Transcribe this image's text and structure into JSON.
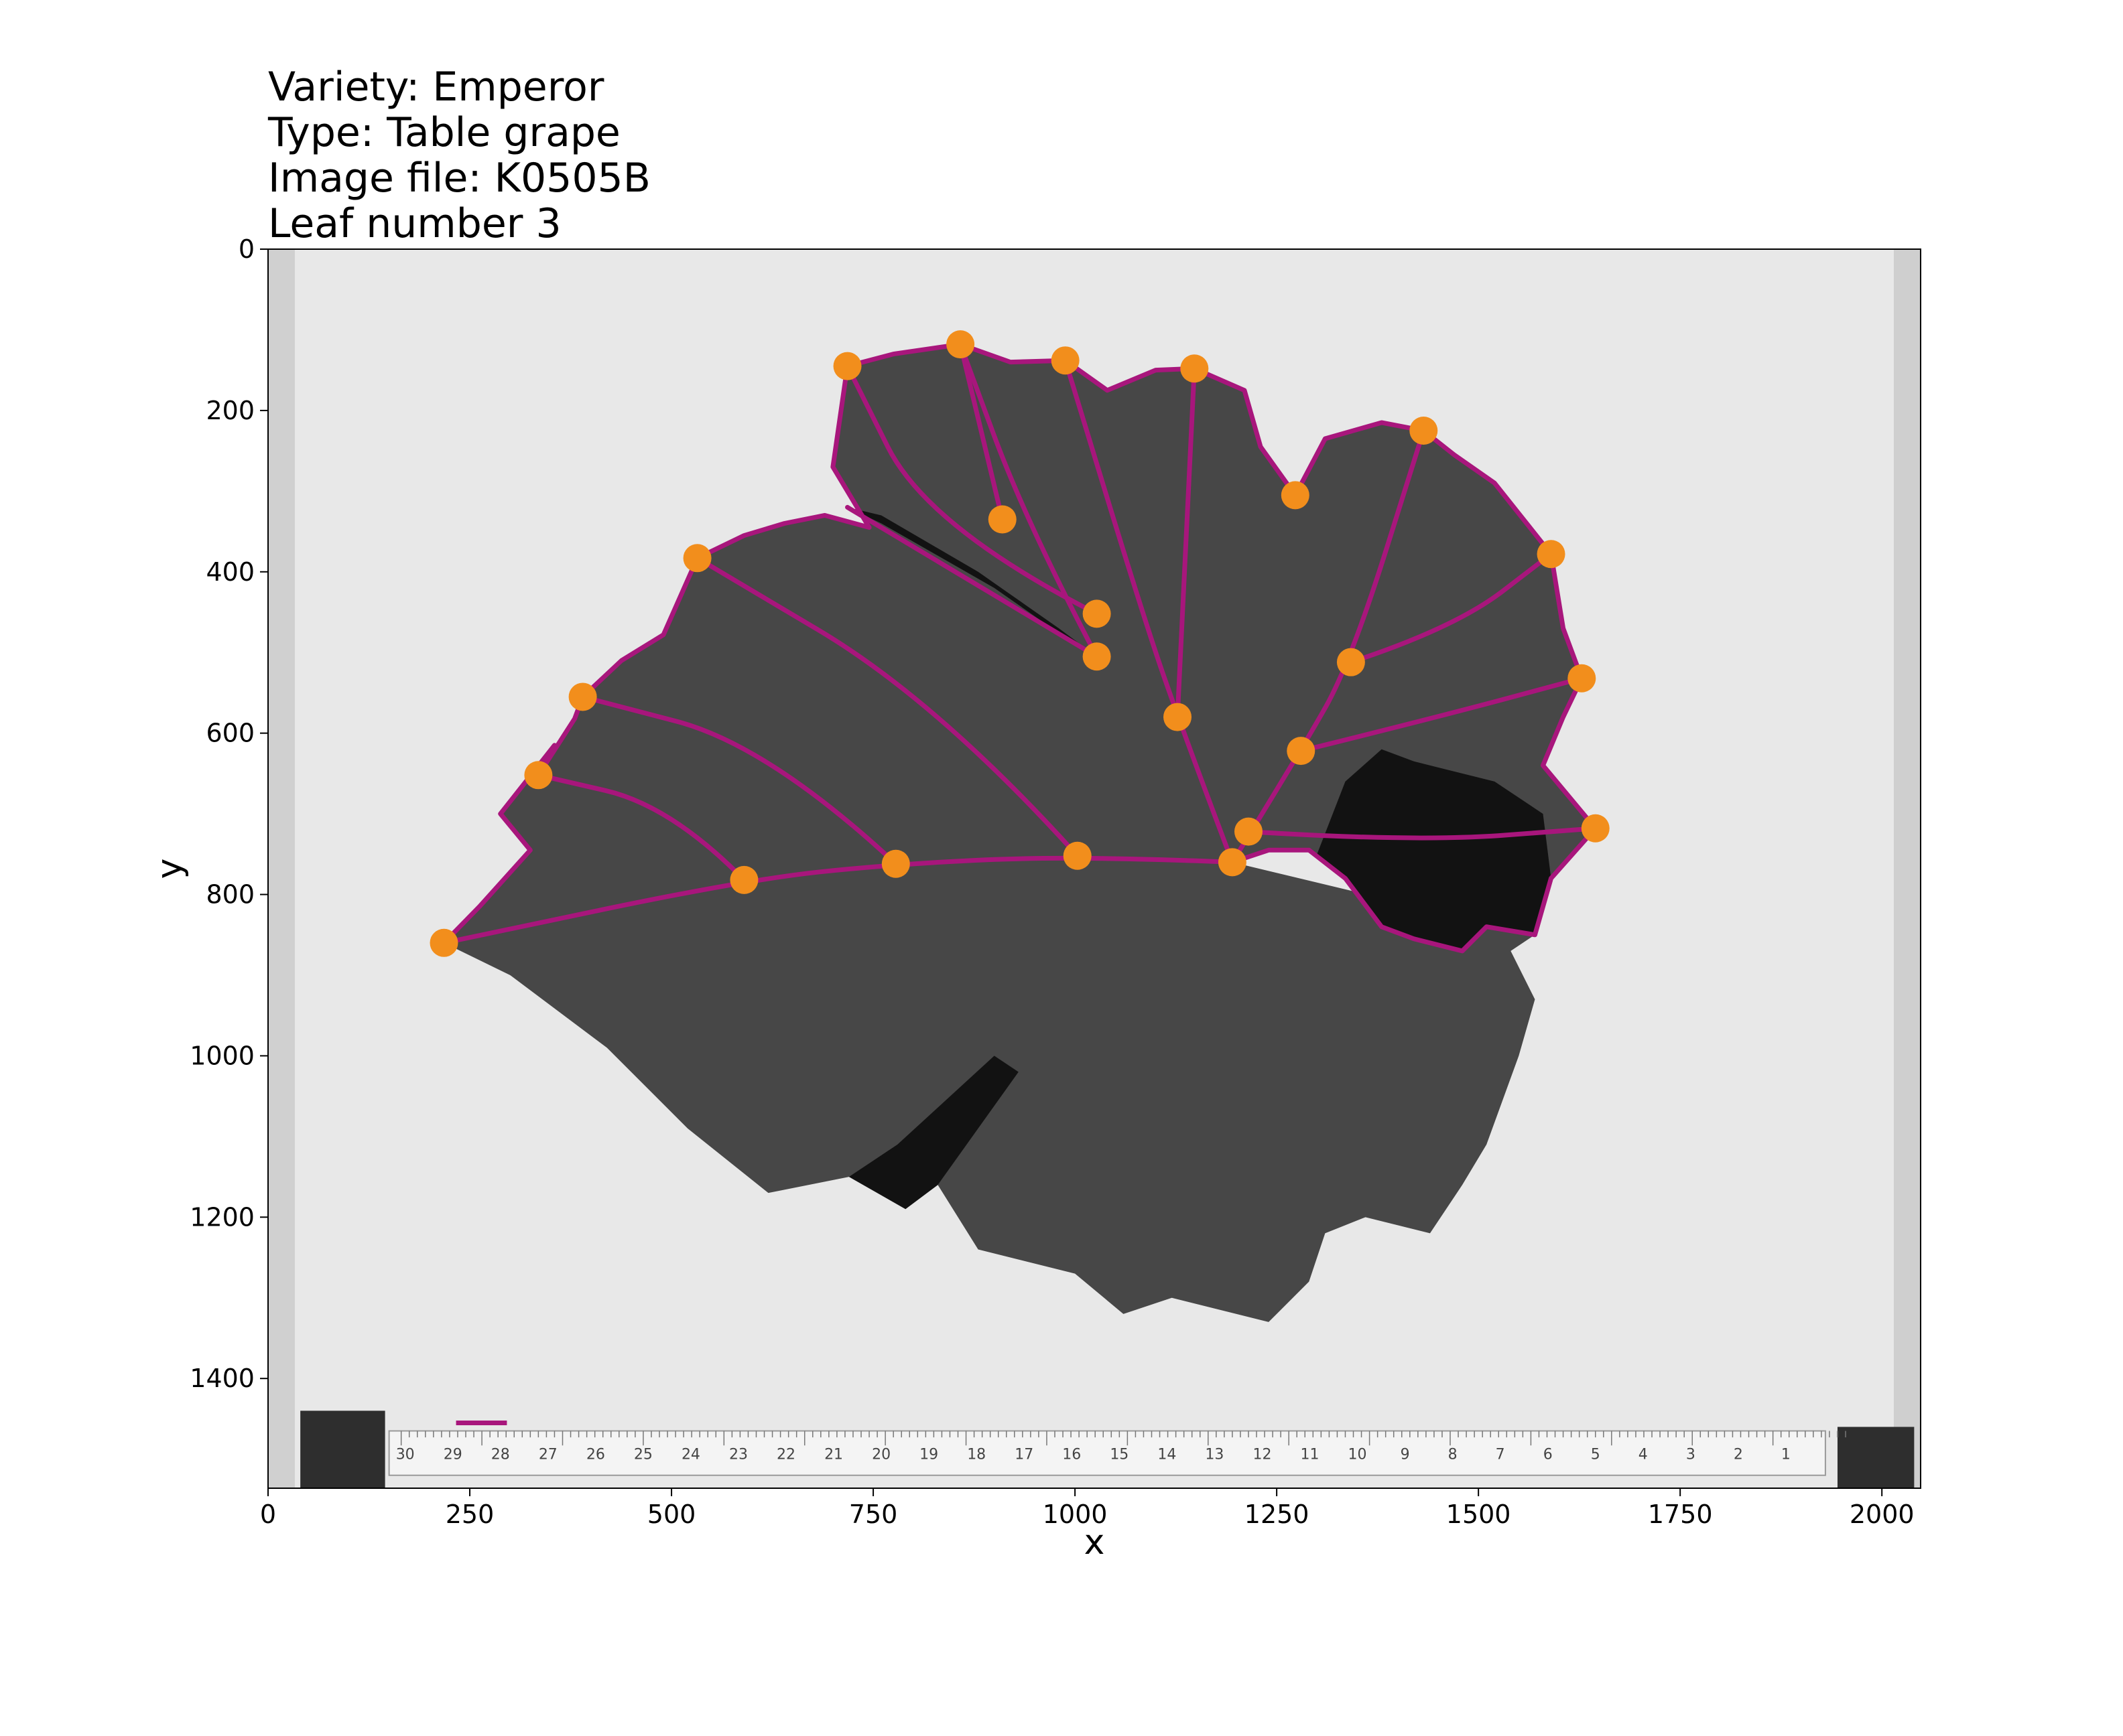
{
  "chart_data": {
    "type": "scatter",
    "title_lines": [
      "Variety: Emperor",
      "Type: Table grape",
      "Image file: K0505B",
      "Leaf number 3"
    ],
    "xlabel": "x",
    "ylabel": "y",
    "xlim": [
      0,
      2048
    ],
    "ylim": [
      1536,
      0
    ],
    "x_ticks": [
      0,
      250,
      500,
      750,
      1000,
      1250,
      1500,
      1750,
      2000
    ],
    "y_ticks": [
      0,
      200,
      400,
      600,
      800,
      1000,
      1200,
      1400
    ],
    "x_tick_labels": [
      "0",
      "250",
      "500",
      "750",
      "1000",
      "1250",
      "1500",
      "1750",
      "2000"
    ],
    "y_tick_labels": [
      "0",
      "200",
      "400",
      "600",
      "800",
      "1000",
      "1200",
      "1400"
    ],
    "colors": {
      "landmark": "#f28e1c",
      "outline": "#a8167c",
      "leaf": "#474747",
      "shadow": "#121212",
      "background": "#e8e8e8"
    },
    "landmarks": [
      {
        "x": 1195,
        "y": 760
      },
      {
        "x": 1003,
        "y": 752
      },
      {
        "x": 778,
        "y": 762
      },
      {
        "x": 590,
        "y": 782
      },
      {
        "x": 218,
        "y": 860
      },
      {
        "x": 1127,
        "y": 580
      },
      {
        "x": 1027,
        "y": 452
      },
      {
        "x": 1027,
        "y": 505
      },
      {
        "x": 910,
        "y": 335
      },
      {
        "x": 1280,
        "y": 622
      },
      {
        "x": 1342,
        "y": 512
      },
      {
        "x": 1215,
        "y": 722
      },
      {
        "x": 718,
        "y": 145
      },
      {
        "x": 858,
        "y": 118
      },
      {
        "x": 988,
        "y": 138
      },
      {
        "x": 1148,
        "y": 148
      },
      {
        "x": 1273,
        "y": 305
      },
      {
        "x": 1432,
        "y": 225
      },
      {
        "x": 1590,
        "y": 378
      },
      {
        "x": 1628,
        "y": 532
      },
      {
        "x": 1645,
        "y": 718
      },
      {
        "x": 532,
        "y": 383
      },
      {
        "x": 390,
        "y": 555
      },
      {
        "x": 335,
        "y": 652
      }
    ],
    "blade_outline": [
      [
        218,
        860
      ],
      [
        262,
        815
      ],
      [
        325,
        745
      ],
      [
        288,
        700
      ],
      [
        355,
        615
      ],
      [
        335,
        652
      ],
      [
        380,
        582
      ],
      [
        390,
        555
      ],
      [
        438,
        510
      ],
      [
        490,
        478
      ],
      [
        532,
        383
      ],
      [
        590,
        355
      ],
      [
        640,
        340
      ],
      [
        690,
        330
      ],
      [
        745,
        345
      ],
      [
        700,
        270
      ],
      [
        718,
        145
      ],
      [
        775,
        130
      ],
      [
        858,
        118
      ],
      [
        920,
        140
      ],
      [
        988,
        138
      ],
      [
        1040,
        175
      ],
      [
        1100,
        150
      ],
      [
        1148,
        148
      ],
      [
        1210,
        175
      ],
      [
        1230,
        245
      ],
      [
        1273,
        305
      ],
      [
        1310,
        235
      ],
      [
        1380,
        215
      ],
      [
        1432,
        225
      ],
      [
        1470,
        255
      ],
      [
        1520,
        290
      ],
      [
        1590,
        378
      ],
      [
        1605,
        470
      ],
      [
        1628,
        532
      ],
      [
        1605,
        580
      ],
      [
        1580,
        640
      ],
      [
        1645,
        718
      ],
      [
        1590,
        780
      ],
      [
        1570,
        850
      ],
      [
        1510,
        840
      ],
      [
        1480,
        870
      ],
      [
        1420,
        855
      ],
      [
        1380,
        840
      ],
      [
        1335,
        780
      ],
      [
        1290,
        745
      ],
      [
        1240,
        745
      ],
      [
        1195,
        760
      ]
    ],
    "veins": [
      {
        "name": "midrib-left",
        "points": [
          [
            1195,
            760
          ],
          [
            1003,
            752
          ],
          [
            778,
            762
          ],
          [
            590,
            782
          ],
          [
            218,
            860
          ]
        ]
      },
      {
        "name": "vein-upper",
        "points": [
          [
            1195,
            760
          ],
          [
            1127,
            580
          ],
          [
            1080,
            440
          ],
          [
            988,
            138
          ]
        ]
      },
      {
        "name": "vein-upper-2",
        "points": [
          [
            1127,
            580
          ],
          [
            1148,
            148
          ]
        ]
      },
      {
        "name": "vein-upper-3",
        "points": [
          [
            1027,
            505
          ],
          [
            940,
            340
          ],
          [
            858,
            118
          ]
        ]
      },
      {
        "name": "vein-upper-4",
        "points": [
          [
            1027,
            452
          ],
          [
            818,
            345
          ],
          [
            718,
            145
          ]
        ]
      },
      {
        "name": "vein-upper-5",
        "points": [
          [
            910,
            335
          ],
          [
            858,
            118
          ]
        ]
      },
      {
        "name": "vein-left-sinus",
        "points": [
          [
            718,
            320
          ],
          [
            1027,
            505
          ]
        ]
      },
      {
        "name": "vein-left-1",
        "points": [
          [
            1003,
            752
          ],
          [
            830,
            560
          ],
          [
            532,
            383
          ]
        ]
      },
      {
        "name": "vein-left-2",
        "points": [
          [
            778,
            762
          ],
          [
            620,
            615
          ],
          [
            390,
            555
          ]
        ]
      },
      {
        "name": "vein-left-3",
        "points": [
          [
            590,
            782
          ],
          [
            500,
            690
          ],
          [
            335,
            652
          ]
        ]
      },
      {
        "name": "vein-right-1",
        "points": [
          [
            1195,
            760
          ],
          [
            1280,
            622
          ],
          [
            1342,
            512
          ],
          [
            1432,
            225
          ]
        ]
      },
      {
        "name": "vein-right-2",
        "points": [
          [
            1342,
            512
          ],
          [
            1470,
            470
          ],
          [
            1590,
            378
          ]
        ]
      },
      {
        "name": "vein-right-3",
        "points": [
          [
            1280,
            622
          ],
          [
            1450,
            580
          ],
          [
            1628,
            532
          ]
        ]
      },
      {
        "name": "vein-right-4",
        "points": [
          [
            1215,
            722
          ],
          [
            1420,
            735
          ],
          [
            1645,
            718
          ]
        ]
      }
    ],
    "scale_bar": {
      "x": [
        233,
        296
      ],
      "y": [
        1455,
        1455
      ]
    },
    "ruler_numbers": [
      "30",
      "29",
      "28",
      "27",
      "26",
      "25",
      "24",
      "23",
      "22",
      "21",
      "20",
      "19",
      "18",
      "17",
      "16",
      "15",
      "14",
      "13",
      "12",
      "11",
      "10",
      "9",
      "8",
      "7",
      "6",
      "5",
      "4",
      "3",
      "2",
      "1"
    ]
  }
}
